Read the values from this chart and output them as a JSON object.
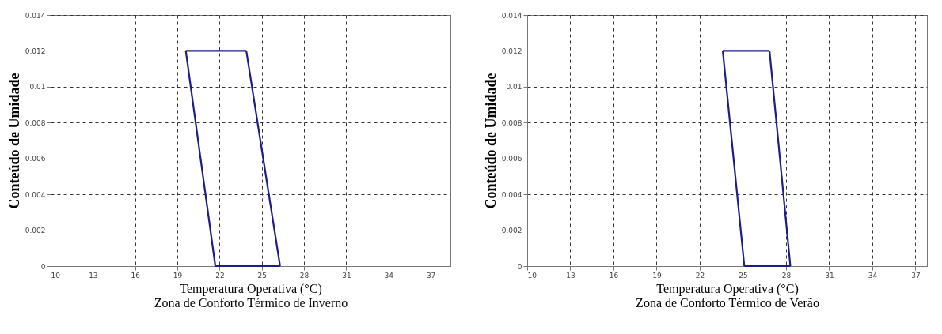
{
  "chart_data": [
    {
      "type": "line",
      "xlabel": "Temperatura Operativa (°C)",
      "ylabel": "Conteúdo de Umidade",
      "annotations": [
        "Zona de Conforto Térmico  de Inverno"
      ],
      "series": [
        {
          "color": "#1c1c8c",
          "x": [
            19.6,
            23.9
          ],
          "values": [
            0.012,
            0.012
          ]
        },
        {
          "color": "#1c1c8c",
          "x": [
            23.9,
            26.3
          ],
          "values": [
            0.012,
            0
          ]
        },
        {
          "color": "#1c1c8c",
          "x": [
            21.7,
            26.3
          ],
          "values": [
            0,
            0
          ]
        },
        {
          "color": "#1c1c8c",
          "x": [
            19.6,
            21.7
          ],
          "values": [
            0.012,
            0
          ]
        }
      ],
      "xlim": [
        10,
        38.4
      ],
      "xticks": [
        10,
        13,
        16,
        19,
        22,
        25,
        28,
        31,
        34,
        37
      ],
      "ylim": [
        0,
        0.014
      ],
      "yticks": [
        0,
        0.002,
        0.004,
        0.006,
        0.008,
        0.01,
        0.012,
        0.014
      ],
      "grid": true,
      "line_style": "solid",
      "marker": "none",
      "legend": false
    },
    {
      "type": "line",
      "xlabel": "Temperatura Operativa (°C)",
      "ylabel": "Conteúdo de Umidade",
      "annotations": [
        "Zona de Conforto Térmico  de Verão"
      ],
      "series": [
        {
          "color": "#1c1c8c",
          "x": [
            23.6,
            26.85
          ],
          "values": [
            0.012,
            0.012
          ]
        },
        {
          "color": "#1c1c8c",
          "x": [
            26.85,
            28.3
          ],
          "values": [
            0.012,
            0
          ]
        },
        {
          "color": "#1c1c8c",
          "x": [
            25.1,
            28.3
          ],
          "values": [
            0,
            0
          ]
        },
        {
          "color": "#1c1c8c",
          "x": [
            23.6,
            25.1
          ],
          "values": [
            0.012,
            0
          ]
        }
      ],
      "xlim": [
        10,
        37.8
      ],
      "xticks": [
        10,
        13,
        16,
        19,
        22,
        25,
        28,
        31,
        34,
        37
      ],
      "ylim": [
        0,
        0.014
      ],
      "yticks": [
        0,
        0.002,
        0.004,
        0.006,
        0.008,
        0.01,
        0.012,
        0.014
      ],
      "grid": true,
      "line_style": "solid",
      "marker": "none",
      "legend": false
    }
  ]
}
